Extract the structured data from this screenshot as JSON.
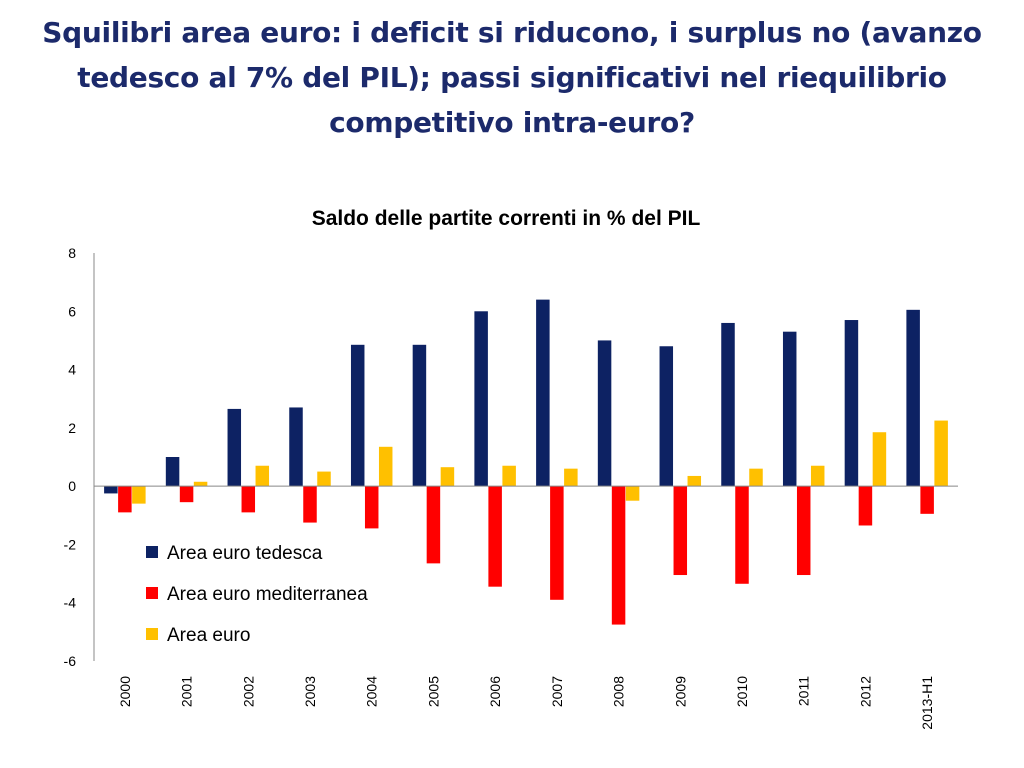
{
  "slide": {
    "title": "Squilibri area euro: i deficit si riducono, i surplus no (avanzo tedesco al 7% del PIL); passi significativi nel riequilibrio competitivo intra-euro?"
  },
  "chart_data": {
    "type": "bar",
    "title": "Saldo delle partite correnti in % del PIL",
    "xlabel": "",
    "ylabel": "",
    "ylim": [
      -6,
      8
    ],
    "yticks": [
      8,
      6,
      4,
      2,
      0,
      -2,
      -4,
      -6
    ],
    "grid": false,
    "legend_position": "bottom-left",
    "categories": [
      "2000",
      "2001",
      "2002",
      "2003",
      "2004",
      "2005",
      "2006",
      "2007",
      "2008",
      "2009",
      "2010",
      "2011",
      "2012",
      "2013-H1"
    ],
    "series": [
      {
        "name": "Area euro tedesca",
        "color": "#0d2263",
        "values": [
          -0.25,
          1.0,
          2.65,
          2.7,
          4.85,
          4.85,
          6.0,
          6.4,
          5.0,
          4.8,
          5.6,
          5.3,
          5.7,
          6.05
        ]
      },
      {
        "name": "Area euro mediterranea",
        "color": "#ff0000",
        "values": [
          -0.9,
          -0.55,
          -0.9,
          -1.25,
          -1.45,
          -2.65,
          -3.45,
          -3.9,
          -4.75,
          -3.05,
          -3.35,
          -3.05,
          -1.35,
          -0.95
        ]
      },
      {
        "name": "Area euro",
        "color": "#ffc000",
        "values": [
          -0.6,
          0.15,
          0.7,
          0.5,
          1.35,
          0.65,
          0.7,
          0.6,
          -0.5,
          0.35,
          0.6,
          0.7,
          1.85,
          2.25
        ]
      }
    ]
  }
}
